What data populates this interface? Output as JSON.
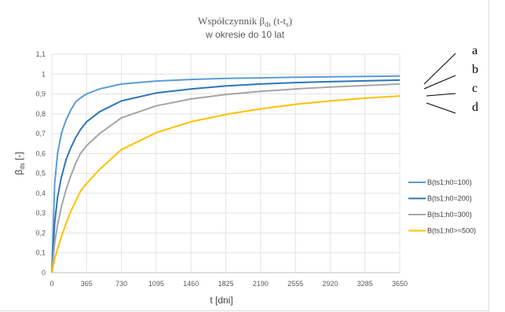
{
  "chart_data": {
    "type": "line",
    "title_main": "Współczynnik β",
    "title_sub_ds": "ds",
    "title_suffix": " (t-t",
    "title_sub_s": "s",
    "title_end": ")",
    "subtitle": "w okresie do 10 lat",
    "xlabel": "t [dni]",
    "ylabel_beta": "β",
    "ylabel_sub": "ds",
    "ylabel_unit": " [-]",
    "xlim": [
      0,
      3650
    ],
    "ylim": [
      0,
      1.1
    ],
    "x_ticks": [
      "0",
      "365",
      "730",
      "1095",
      "1460",
      "1825",
      "2190",
      "2555",
      "2920",
      "3285",
      "3650"
    ],
    "y_ticks": [
      "0",
      "0,1",
      "0,2",
      "0,3",
      "0,4",
      "0,5",
      "0,6",
      "0,7",
      "0,8",
      "0,9",
      "1",
      "1,1"
    ],
    "x": [
      0,
      30,
      60,
      100,
      150,
      200,
      250,
      300,
      365,
      500,
      730,
      1095,
      1460,
      1825,
      2190,
      2555,
      2920,
      3285,
      3650
    ],
    "series": [
      {
        "name": "B(ts1;h0=100)",
        "color": "#5b9bd5",
        "values": [
          0,
          0.45,
          0.6,
          0.7,
          0.77,
          0.82,
          0.86,
          0.88,
          0.9,
          0.925,
          0.95,
          0.965,
          0.973,
          0.978,
          0.981,
          0.984,
          0.986,
          0.988,
          0.99
        ]
      },
      {
        "name": "B(ts1;h0=200)",
        "color": "#2e75b6",
        "values": [
          0,
          0.25,
          0.38,
          0.48,
          0.57,
          0.63,
          0.68,
          0.72,
          0.76,
          0.81,
          0.865,
          0.905,
          0.925,
          0.94,
          0.95,
          0.957,
          0.962,
          0.966,
          0.97
        ]
      },
      {
        "name": "B(ts1;h0=300)",
        "color": "#a5a5a5",
        "values": [
          0,
          0.15,
          0.24,
          0.33,
          0.42,
          0.49,
          0.55,
          0.6,
          0.64,
          0.7,
          0.78,
          0.84,
          0.875,
          0.897,
          0.913,
          0.925,
          0.935,
          0.942,
          0.95
        ]
      },
      {
        "name": "B(ts1;h0>=500)",
        "color": "#ffc000",
        "values": [
          0,
          0.07,
          0.12,
          0.18,
          0.25,
          0.31,
          0.36,
          0.41,
          0.45,
          0.52,
          0.62,
          0.705,
          0.76,
          0.797,
          0.825,
          0.848,
          0.865,
          0.879,
          0.89
        ]
      }
    ],
    "grid": true,
    "legend_position": "right"
  },
  "annotations": {
    "labels": [
      "a",
      "b",
      "c",
      "d"
    ]
  }
}
